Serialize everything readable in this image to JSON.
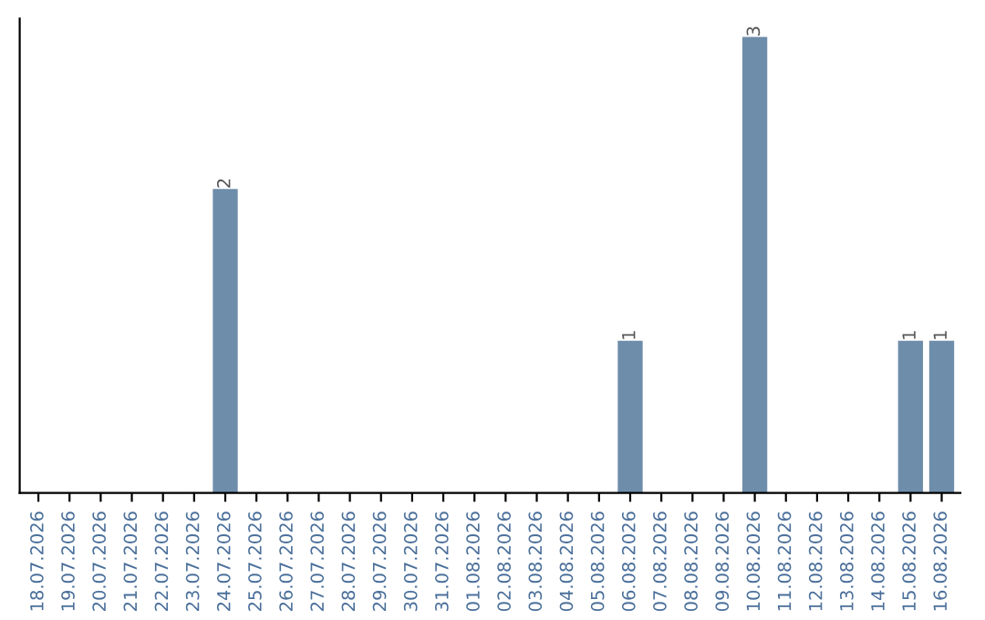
{
  "chart_data": {
    "type": "bar",
    "categories": [
      "18.07.2026",
      "19.07.2026",
      "20.07.2026",
      "21.07.2026",
      "22.07.2026",
      "23.07.2026",
      "24.07.2026",
      "25.07.2026",
      "26.07.2026",
      "27.07.2026",
      "28.07.2026",
      "29.07.2026",
      "30.07.2026",
      "31.07.2026",
      "01.08.2026",
      "02.08.2026",
      "03.08.2026",
      "04.08.2026",
      "05.08.2026",
      "06.08.2026",
      "07.08.2026",
      "08.08.2026",
      "09.08.2026",
      "10.08.2026",
      "11.08.2026",
      "12.08.2026",
      "13.08.2026",
      "14.08.2026",
      "15.08.2026",
      "16.08.2026"
    ],
    "values": [
      0,
      0,
      0,
      0,
      0,
      0,
      2,
      0,
      0,
      0,
      0,
      0,
      0,
      0,
      0,
      0,
      0,
      0,
      0,
      1,
      0,
      0,
      0,
      3,
      0,
      0,
      0,
      0,
      1,
      1
    ],
    "value_labels": [
      null,
      null,
      null,
      null,
      null,
      null,
      "2",
      null,
      null,
      null,
      null,
      null,
      null,
      null,
      null,
      null,
      null,
      null,
      null,
      "1",
      null,
      null,
      null,
      "3",
      null,
      null,
      null,
      null,
      "1",
      "1"
    ],
    "color": "#6e8daa",
    "grid": false,
    "legend": false
  }
}
